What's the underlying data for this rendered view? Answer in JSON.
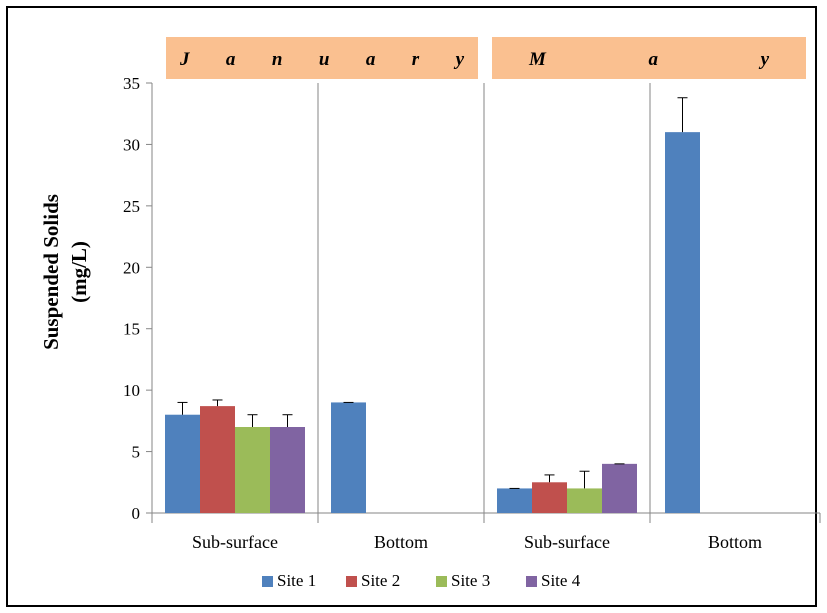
{
  "chart_data": {
    "type": "bar",
    "ylabel": [
      "Suspended Solids",
      "(mg/L)"
    ],
    "ylim": [
      0,
      35
    ],
    "yticks": [
      0,
      5,
      10,
      15,
      20,
      25,
      30,
      35
    ],
    "legend_position": "bottom",
    "series": [
      {
        "name": "Site 1",
        "color": "#4F81BD"
      },
      {
        "name": "Site 2",
        "color": "#C0504D"
      },
      {
        "name": "Site 3",
        "color": "#9BBB59"
      },
      {
        "name": "Site 4",
        "color": "#8064A2"
      }
    ],
    "panels": [
      {
        "title": "January",
        "groups": [
          {
            "category": "Sub-surface",
            "values": [
              8,
              8.7,
              7,
              7
            ],
            "errors": [
              1.0,
              0.5,
              1.0,
              1.0
            ]
          },
          {
            "category": "Bottom",
            "values": [
              9,
              null,
              null,
              null
            ],
            "errors": [
              0,
              null,
              null,
              null
            ]
          }
        ]
      },
      {
        "title": "May",
        "groups": [
          {
            "category": "Sub-surface",
            "values": [
              2,
              2.5,
              2,
              4
            ],
            "errors": [
              0,
              0.6,
              1.4,
              0
            ]
          },
          {
            "category": "Bottom",
            "values": [
              31,
              null,
              null,
              null
            ],
            "errors": [
              2.8,
              null,
              null,
              null
            ]
          }
        ]
      }
    ]
  }
}
